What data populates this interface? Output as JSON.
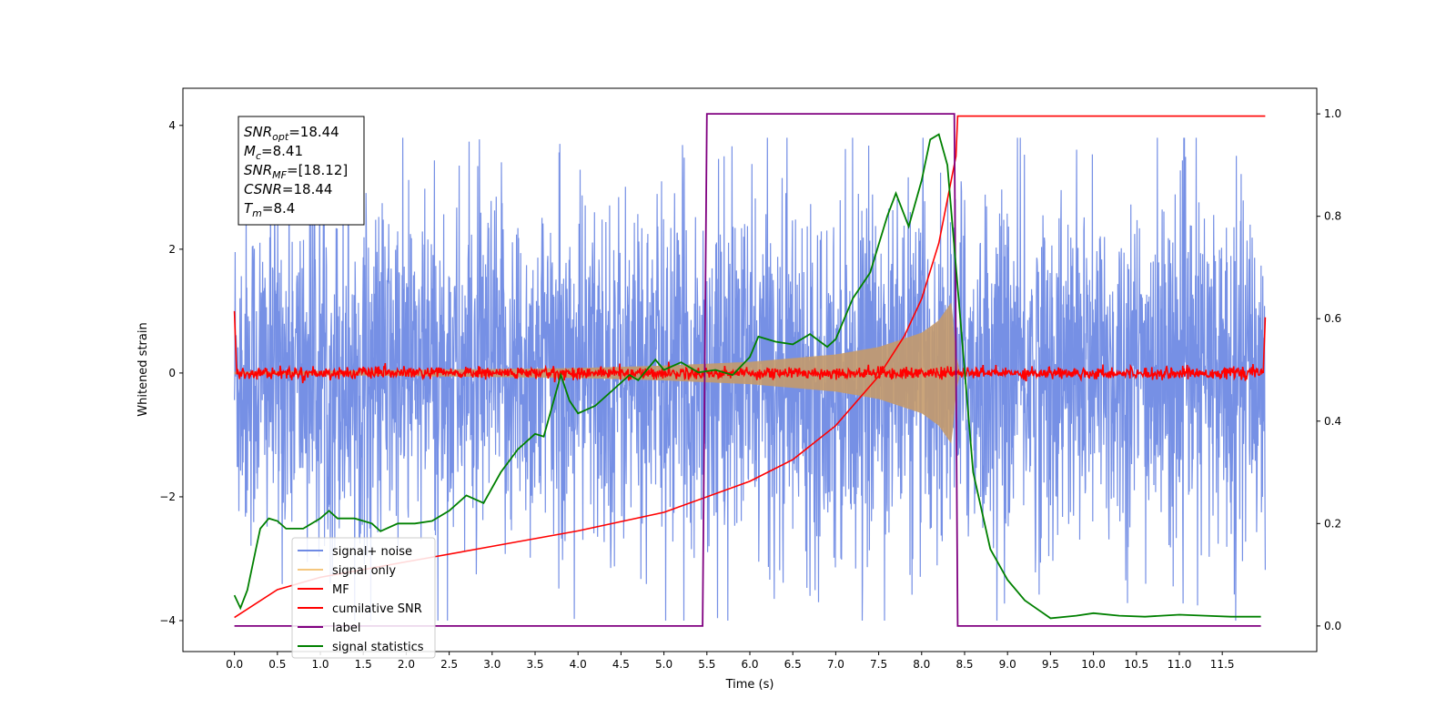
{
  "chart_data": {
    "type": "line",
    "title": "",
    "xlabel": "Time (s)",
    "ylabel": "Whitened strain",
    "xlim": [
      -0.6,
      12.6
    ],
    "ylim": [
      -4.5,
      4.6
    ],
    "y2lim": [
      -0.05,
      1.05
    ],
    "xticks": [
      0.0,
      0.5,
      1.0,
      1.5,
      2.0,
      2.5,
      3.0,
      3.5,
      4.0,
      4.5,
      5.0,
      5.5,
      6.0,
      6.5,
      7.0,
      7.5,
      8.0,
      8.5,
      9.0,
      9.5,
      10.0,
      10.5,
      11.0,
      11.5
    ],
    "xtick_labels": [
      "0.0",
      "0.5",
      "1.0",
      "1.5",
      "2.0",
      "2.5",
      "3.0",
      "3.5",
      "4.0",
      "4.5",
      "5.0",
      "5.5",
      "6.0",
      "6.5",
      "7.0",
      "7.5",
      "8.0",
      "8.5",
      "9.0",
      "9.5",
      "10.0",
      "10.5",
      "11.0",
      "11.5"
    ],
    "yticks": [
      -4,
      -2,
      0,
      2,
      4
    ],
    "ytick_labels": [
      "−4",
      "−2",
      "0",
      "2",
      "4"
    ],
    "y2ticks": [
      0.0,
      0.2,
      0.4,
      0.6,
      0.8,
      1.0
    ],
    "y2tick_labels": [
      "0.0",
      "0.2",
      "0.4",
      "0.6",
      "0.8",
      "1.0"
    ],
    "grid": false,
    "legend_position": "bottom-left",
    "legend": [
      {
        "label": "signal+ noise",
        "color": "#6f8ae4"
      },
      {
        "label": "signal only",
        "color": "#f5c77e"
      },
      {
        "label": "MF",
        "color": "#ff0000"
      },
      {
        "label": "cumilative SNR",
        "color": "#ff0000"
      },
      {
        "label": "label",
        "color": "#800080"
      },
      {
        "label": "signal statistics",
        "color": "#008000"
      }
    ],
    "stats_box": [
      {
        "base": "SNR",
        "sub": "opt",
        "value": "=18.44"
      },
      {
        "base": "M",
        "sub": "c",
        "value": "=8.41"
      },
      {
        "base": "SNR",
        "sub": "MF",
        "value": "=[18.12]"
      },
      {
        "base": "CSNR",
        "sub": "",
        "value": "=18.44"
      },
      {
        "base": "T",
        "sub": "m",
        "value": "=8.4"
      }
    ],
    "series": [
      {
        "name": "signal+ noise",
        "axis": "left",
        "color": "#6f8ae4",
        "description_values": {
          "t_start": 0.0,
          "t_end": 12.0,
          "amplitude_typical": 1.8,
          "amplitude_max": 3.8,
          "amplitude_min": -4.0
        }
      },
      {
        "name": "signal only",
        "axis": "left",
        "color": "#c49a6c",
        "envelope": [
          [
            0.0,
            0.02
          ],
          [
            2.0,
            0.05
          ],
          [
            4.0,
            0.08
          ],
          [
            5.0,
            0.12
          ],
          [
            6.0,
            0.18
          ],
          [
            7.0,
            0.3
          ],
          [
            7.5,
            0.42
          ],
          [
            8.0,
            0.65
          ],
          [
            8.2,
            0.85
          ],
          [
            8.35,
            1.15
          ],
          [
            8.4,
            0.3
          ],
          [
            8.45,
            0.0
          ]
        ]
      },
      {
        "name": "MF",
        "axis": "left",
        "color": "#ff0000",
        "description_values": {
          "t_start": 0.0,
          "t_end": 12.0,
          "amplitude_typical": 0.08
        }
      },
      {
        "name": "cumilative SNR",
        "axis": "left",
        "color": "#ff0000",
        "points": [
          [
            0.0,
            -3.95
          ],
          [
            0.5,
            -3.5
          ],
          [
            1.0,
            -3.3
          ],
          [
            2.0,
            -3.05
          ],
          [
            3.0,
            -2.8
          ],
          [
            4.0,
            -2.55
          ],
          [
            5.0,
            -2.25
          ],
          [
            6.0,
            -1.75
          ],
          [
            6.5,
            -1.4
          ],
          [
            7.0,
            -0.85
          ],
          [
            7.5,
            -0.05
          ],
          [
            7.8,
            0.6
          ],
          [
            8.0,
            1.2
          ],
          [
            8.2,
            2.1
          ],
          [
            8.4,
            3.5
          ],
          [
            8.42,
            4.15
          ],
          [
            12.0,
            4.15
          ]
        ]
      },
      {
        "name": "label",
        "axis": "right",
        "color": "#800080",
        "points": [
          [
            0.0,
            0.0
          ],
          [
            5.45,
            0.0
          ],
          [
            5.5,
            1.0
          ],
          [
            8.38,
            1.0
          ],
          [
            8.42,
            0.0
          ],
          [
            11.95,
            0.0
          ]
        ]
      },
      {
        "name": "signal statistics",
        "axis": "right",
        "color": "#008000",
        "points": [
          [
            0.0,
            0.06
          ],
          [
            0.07,
            0.035
          ],
          [
            0.15,
            0.07
          ],
          [
            0.25,
            0.15
          ],
          [
            0.3,
            0.19
          ],
          [
            0.4,
            0.21
          ],
          [
            0.5,
            0.205
          ],
          [
            0.6,
            0.19
          ],
          [
            0.8,
            0.19
          ],
          [
            1.0,
            0.21
          ],
          [
            1.1,
            0.225
          ],
          [
            1.2,
            0.21
          ],
          [
            1.4,
            0.21
          ],
          [
            1.6,
            0.2
          ],
          [
            1.7,
            0.185
          ],
          [
            1.9,
            0.2
          ],
          [
            2.1,
            0.2
          ],
          [
            2.3,
            0.205
          ],
          [
            2.5,
            0.225
          ],
          [
            2.7,
            0.255
          ],
          [
            2.9,
            0.24
          ],
          [
            3.1,
            0.3
          ],
          [
            3.3,
            0.345
          ],
          [
            3.5,
            0.375
          ],
          [
            3.6,
            0.37
          ],
          [
            3.8,
            0.49
          ],
          [
            3.9,
            0.44
          ],
          [
            4.0,
            0.415
          ],
          [
            4.2,
            0.43
          ],
          [
            4.4,
            0.46
          ],
          [
            4.6,
            0.49
          ],
          [
            4.7,
            0.48
          ],
          [
            4.9,
            0.52
          ],
          [
            5.0,
            0.5
          ],
          [
            5.2,
            0.515
          ],
          [
            5.4,
            0.495
          ],
          [
            5.6,
            0.5
          ],
          [
            5.8,
            0.49
          ],
          [
            6.0,
            0.525
          ],
          [
            6.1,
            0.565
          ],
          [
            6.3,
            0.555
          ],
          [
            6.5,
            0.55
          ],
          [
            6.7,
            0.57
          ],
          [
            6.9,
            0.545
          ],
          [
            7.0,
            0.56
          ],
          [
            7.2,
            0.64
          ],
          [
            7.4,
            0.69
          ],
          [
            7.6,
            0.8
          ],
          [
            7.7,
            0.845
          ],
          [
            7.85,
            0.78
          ],
          [
            8.0,
            0.87
          ],
          [
            8.1,
            0.95
          ],
          [
            8.2,
            0.96
          ],
          [
            8.3,
            0.9
          ],
          [
            8.45,
            0.6
          ],
          [
            8.6,
            0.3
          ],
          [
            8.8,
            0.15
          ],
          [
            9.0,
            0.09
          ],
          [
            9.2,
            0.05
          ],
          [
            9.5,
            0.015
          ],
          [
            9.8,
            0.02
          ],
          [
            10.0,
            0.025
          ],
          [
            10.3,
            0.02
          ],
          [
            10.6,
            0.018
          ],
          [
            11.0,
            0.022
          ],
          [
            11.3,
            0.02
          ],
          [
            11.6,
            0.018
          ],
          [
            11.95,
            0.018
          ]
        ]
      }
    ]
  }
}
